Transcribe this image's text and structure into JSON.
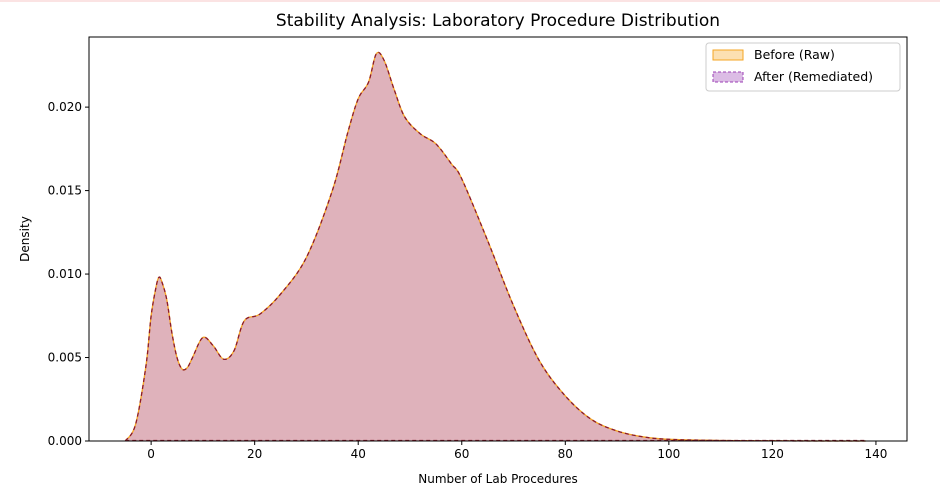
{
  "chart_data": {
    "type": "area",
    "title": "Stability Analysis: Laboratory Procedure Distribution",
    "xlabel": "Number of Lab Procedures",
    "ylabel": "Density",
    "xlim": [
      -12,
      146
    ],
    "ylim": [
      0,
      0.0242
    ],
    "xticks": [
      0,
      20,
      40,
      60,
      80,
      100,
      120,
      140
    ],
    "xtick_labels": [
      "0",
      "20",
      "40",
      "60",
      "80",
      "100",
      "120",
      "140"
    ],
    "yticks": [
      0,
      0.005,
      0.01,
      0.015,
      0.02
    ],
    "ytick_labels": [
      "0.000",
      "0.005",
      "0.010",
      "0.015",
      "0.020"
    ],
    "grid": false,
    "legend_position": "top-right",
    "colors": {
      "before": "#f5a623",
      "after": "#9b3fb5",
      "line": "#8b1a2b"
    },
    "x": [
      -5,
      -3,
      -1,
      0,
      1,
      1.5,
      2,
      3,
      4,
      5,
      6,
      7,
      8,
      10,
      12,
      14,
      16,
      18,
      21,
      25,
      30,
      35,
      38,
      40,
      42,
      43.5,
      45,
      47,
      49,
      52,
      55,
      58,
      60,
      65,
      70,
      75,
      80,
      85,
      90,
      95,
      100,
      110,
      120,
      130,
      138
    ],
    "series": [
      {
        "name": "Before (Raw)",
        "values": [
          0,
          0.001,
          0.0045,
          0.0075,
          0.0093,
          0.0098,
          0.0096,
          0.0085,
          0.0065,
          0.005,
          0.0043,
          0.0044,
          0.005,
          0.0062,
          0.0057,
          0.0049,
          0.0054,
          0.0072,
          0.0076,
          0.0088,
          0.011,
          0.015,
          0.0185,
          0.0205,
          0.0215,
          0.0232,
          0.0228,
          0.021,
          0.0194,
          0.0184,
          0.0178,
          0.0166,
          0.0157,
          0.012,
          0.0081,
          0.0048,
          0.0027,
          0.0013,
          0.0006,
          0.00025,
          0.0001,
          3e-05,
          1e-05,
          0,
          0
        ]
      },
      {
        "name": "After (Remediated)",
        "values": [
          0,
          0.001,
          0.0045,
          0.0075,
          0.0093,
          0.0098,
          0.0096,
          0.0085,
          0.0065,
          0.005,
          0.0043,
          0.0044,
          0.005,
          0.0062,
          0.0057,
          0.0049,
          0.0054,
          0.0072,
          0.0076,
          0.0088,
          0.011,
          0.015,
          0.0185,
          0.0205,
          0.0215,
          0.0232,
          0.0228,
          0.021,
          0.0194,
          0.0184,
          0.0178,
          0.0166,
          0.0157,
          0.012,
          0.0081,
          0.0048,
          0.0027,
          0.0013,
          0.0006,
          0.00025,
          0.0001,
          3e-05,
          1e-05,
          0,
          0
        ]
      }
    ]
  }
}
